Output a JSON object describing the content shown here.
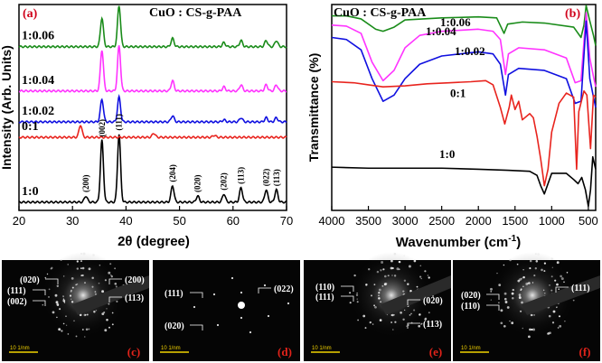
{
  "chart_data": [
    {
      "panel": "(a)",
      "type": "line",
      "title": "CuO : CS-g-PAA",
      "xlabel": "2θ (degree)",
      "ylabel": "Intensity (Arb. Units)",
      "xlim": [
        20,
        70
      ],
      "xticks": [
        20,
        30,
        40,
        50,
        60,
        70
      ],
      "series": [
        {
          "name": "1:0",
          "color": "#000000",
          "baseline": 0.04,
          "peaks": [
            [
              32.5,
              0.03
            ],
            [
              35.5,
              0.3
            ],
            [
              38.7,
              0.33
            ],
            [
              48.7,
              0.08
            ],
            [
              53.4,
              0.03
            ],
            [
              58.3,
              0.04
            ],
            [
              61.5,
              0.07
            ],
            [
              66.2,
              0.06
            ],
            [
              68.1,
              0.06
            ]
          ],
          "peak_labels": [
            [
              32.5,
              "(200)"
            ],
            [
              35.5,
              "(002)"
            ],
            [
              38.7,
              "(111)"
            ],
            [
              48.7,
              "(204)"
            ],
            [
              53.4,
              "(020)"
            ],
            [
              58.3,
              "(202)"
            ],
            [
              61.5,
              "(113)"
            ],
            [
              66.2,
              "(022)"
            ],
            [
              68.1,
              "(113)"
            ]
          ]
        },
        {
          "name": "0:1",
          "color": "#e8241e",
          "baseline": 0.355,
          "peaks": [
            [
              31.5,
              0.06
            ],
            [
              45.2,
              0.02
            ],
            [
              56.5,
              0.01
            ]
          ]
        },
        {
          "name": "1:0.02",
          "color": "#1010e0",
          "baseline": 0.43,
          "peaks": [
            [
              35.5,
              0.11
            ],
            [
              38.7,
              0.12
            ],
            [
              48.7,
              0.03
            ],
            [
              58.3,
              0.01
            ],
            [
              61.5,
              0.02
            ],
            [
              66.2,
              0.02
            ],
            [
              68.1,
              0.02
            ]
          ]
        },
        {
          "name": "1:0.04",
          "color": "#ff33ff",
          "baseline": 0.58,
          "peaks": [
            [
              35.5,
              0.2
            ],
            [
              38.7,
              0.22
            ],
            [
              48.7,
              0.05
            ],
            [
              58.3,
              0.02
            ],
            [
              61.5,
              0.03
            ],
            [
              66.2,
              0.03
            ],
            [
              68.1,
              0.03
            ]
          ]
        },
        {
          "name": "1:0.06",
          "color": "#1a8c1a",
          "baseline": 0.795,
          "peaks": [
            [
              35.5,
              0.14
            ],
            [
              38.7,
              0.2
            ],
            [
              48.7,
              0.04
            ],
            [
              58.3,
              0.02
            ],
            [
              61.5,
              0.03
            ],
            [
              66.2,
              0.03
            ],
            [
              68.1,
              0.03
            ]
          ]
        }
      ],
      "legend": [
        "1:0.06",
        "1:0.04",
        "1:0.02",
        "0:1",
        "1:0"
      ]
    },
    {
      "panel": "(b)",
      "type": "line",
      "title": "CuO : CS-g-PAA",
      "xlabel": "Wavenumber (cm⁻¹)",
      "ylabel": "Transmittance (%)",
      "xlim": [
        4000,
        400
      ],
      "xticks": [
        4000,
        3500,
        3000,
        2500,
        2000,
        1500,
        1000,
        500
      ],
      "series": [
        {
          "name": "1:0.06",
          "color": "#1a8c1a",
          "points": [
            [
              4000,
              0.945
            ],
            [
              3800,
              0.945
            ],
            [
              3600,
              0.93
            ],
            [
              3400,
              0.88
            ],
            [
              3300,
              0.87
            ],
            [
              3150,
              0.89
            ],
            [
              3000,
              0.925
            ],
            [
              2500,
              0.935
            ],
            [
              2000,
              0.94
            ],
            [
              1750,
              0.935
            ],
            [
              1650,
              0.86
            ],
            [
              1600,
              0.905
            ],
            [
              1400,
              0.915
            ],
            [
              1100,
              0.91
            ],
            [
              700,
              0.89
            ],
            [
              600,
              0.84
            ],
            [
              560,
              0.9
            ],
            [
              530,
              0.995
            ],
            [
              480,
              0.92
            ],
            [
              430,
              0.85
            ],
            [
              400,
              0.8
            ]
          ]
        },
        {
          "name": "1:0.04",
          "color": "#ff33ff",
          "points": [
            [
              4000,
              0.9
            ],
            [
              3800,
              0.895
            ],
            [
              3600,
              0.86
            ],
            [
              3450,
              0.72
            ],
            [
              3300,
              0.63
            ],
            [
              3150,
              0.68
            ],
            [
              3000,
              0.79
            ],
            [
              2800,
              0.85
            ],
            [
              2500,
              0.87
            ],
            [
              2000,
              0.88
            ],
            [
              1800,
              0.87
            ],
            [
              1700,
              0.83
            ],
            [
              1630,
              0.66
            ],
            [
              1590,
              0.76
            ],
            [
              1450,
              0.79
            ],
            [
              1100,
              0.78
            ],
            [
              800,
              0.74
            ],
            [
              680,
              0.62
            ],
            [
              600,
              0.63
            ],
            [
              530,
              0.96
            ],
            [
              480,
              0.74
            ],
            [
              430,
              0.65
            ],
            [
              400,
              0.6
            ]
          ]
        },
        {
          "name": "1:0.02",
          "color": "#1010e0",
          "points": [
            [
              4000,
              0.84
            ],
            [
              3800,
              0.83
            ],
            [
              3600,
              0.78
            ],
            [
              3450,
              0.64
            ],
            [
              3300,
              0.53
            ],
            [
              3150,
              0.56
            ],
            [
              3000,
              0.64
            ],
            [
              2800,
              0.71
            ],
            [
              2500,
              0.75
            ],
            [
              2000,
              0.77
            ],
            [
              1800,
              0.76
            ],
            [
              1700,
              0.71
            ],
            [
              1630,
              0.56
            ],
            [
              1590,
              0.66
            ],
            [
              1450,
              0.69
            ],
            [
              1100,
              0.68
            ],
            [
              800,
              0.64
            ],
            [
              680,
              0.52
            ],
            [
              600,
              0.53
            ],
            [
              530,
              0.92
            ],
            [
              480,
              0.64
            ],
            [
              430,
              0.55
            ],
            [
              400,
              0.5
            ]
          ]
        },
        {
          "name": "0:1",
          "color": "#e8241e",
          "points": [
            [
              4000,
              0.625
            ],
            [
              3700,
              0.62
            ],
            [
              3500,
              0.61
            ],
            [
              3300,
              0.6
            ],
            [
              3000,
              0.605
            ],
            [
              2700,
              0.615
            ],
            [
              2400,
              0.62
            ],
            [
              2100,
              0.625
            ],
            [
              1900,
              0.63
            ],
            [
              1800,
              0.61
            ],
            [
              1700,
              0.5
            ],
            [
              1640,
              0.42
            ],
            [
              1580,
              0.5
            ],
            [
              1550,
              0.56
            ],
            [
              1500,
              0.49
            ],
            [
              1450,
              0.53
            ],
            [
              1400,
              0.44
            ],
            [
              1300,
              0.47
            ],
            [
              1250,
              0.45
            ],
            [
              1200,
              0.36
            ],
            [
              1150,
              0.25
            ],
            [
              1100,
              0.12
            ],
            [
              1050,
              0.2
            ],
            [
              1000,
              0.38
            ],
            [
              900,
              0.52
            ],
            [
              800,
              0.57
            ],
            [
              700,
              0.55
            ],
            [
              660,
              0.2
            ],
            [
              630,
              0.48
            ],
            [
              560,
              0.58
            ],
            [
              520,
              0.56
            ],
            [
              470,
              0.3
            ],
            [
              430,
              0.56
            ],
            [
              400,
              0.55
            ]
          ]
        },
        {
          "name": "1:0",
          "color": "#000000",
          "points": [
            [
              4000,
              0.21
            ],
            [
              3500,
              0.205
            ],
            [
              3000,
              0.205
            ],
            [
              2500,
              0.205
            ],
            [
              2000,
              0.2
            ],
            [
              1600,
              0.195
            ],
            [
              1300,
              0.19
            ],
            [
              1200,
              0.17
            ],
            [
              1150,
              0.12
            ],
            [
              1100,
              0.08
            ],
            [
              1050,
              0.13
            ],
            [
              1000,
              0.18
            ],
            [
              800,
              0.18
            ],
            [
              700,
              0.15
            ],
            [
              640,
              0.13
            ],
            [
              590,
              0.16
            ],
            [
              540,
              0.1
            ],
            [
              500,
              0.02
            ],
            [
              470,
              0.1
            ],
            [
              440,
              0.26
            ],
            [
              400,
              0.2
            ]
          ]
        }
      ],
      "legend": [
        "1:0.06",
        "1:0.04",
        "1:0.02",
        "0:1",
        "1:0"
      ]
    }
  ],
  "panels": {
    "a": {
      "badge": "(a)",
      "title": "CuO : CS-g-PAA",
      "xlabel": "2θ (degree)",
      "ylabel": "Intensity (Arb. Units)"
    },
    "b": {
      "badge": "(b)",
      "title": "CuO : CS-g-PAA",
      "xlabel_main": "Wavenumber (cm",
      "xlabel_sup": "-1",
      "xlabel_end": ")",
      "ylabel": "Transmittance (%)"
    }
  },
  "saed": [
    {
      "badge": "(c)",
      "scale": "10 1/nm",
      "labels": [
        "(020)",
        "(111)",
        "(002)",
        "(200)",
        "(113)"
      ]
    },
    {
      "badge": "(d)",
      "scale": "10 1/nm",
      "labels": [
        "(111)",
        "(022)",
        "(020)"
      ]
    },
    {
      "badge": "(e)",
      "scale": "10 1/nm",
      "labels": [
        "(110)",
        "(111)",
        "(020)",
        "(113)"
      ]
    },
    {
      "badge": "(f)",
      "scale": "10 1/nm",
      "labels": [
        "(020)",
        "(110)",
        "(111)"
      ]
    }
  ]
}
